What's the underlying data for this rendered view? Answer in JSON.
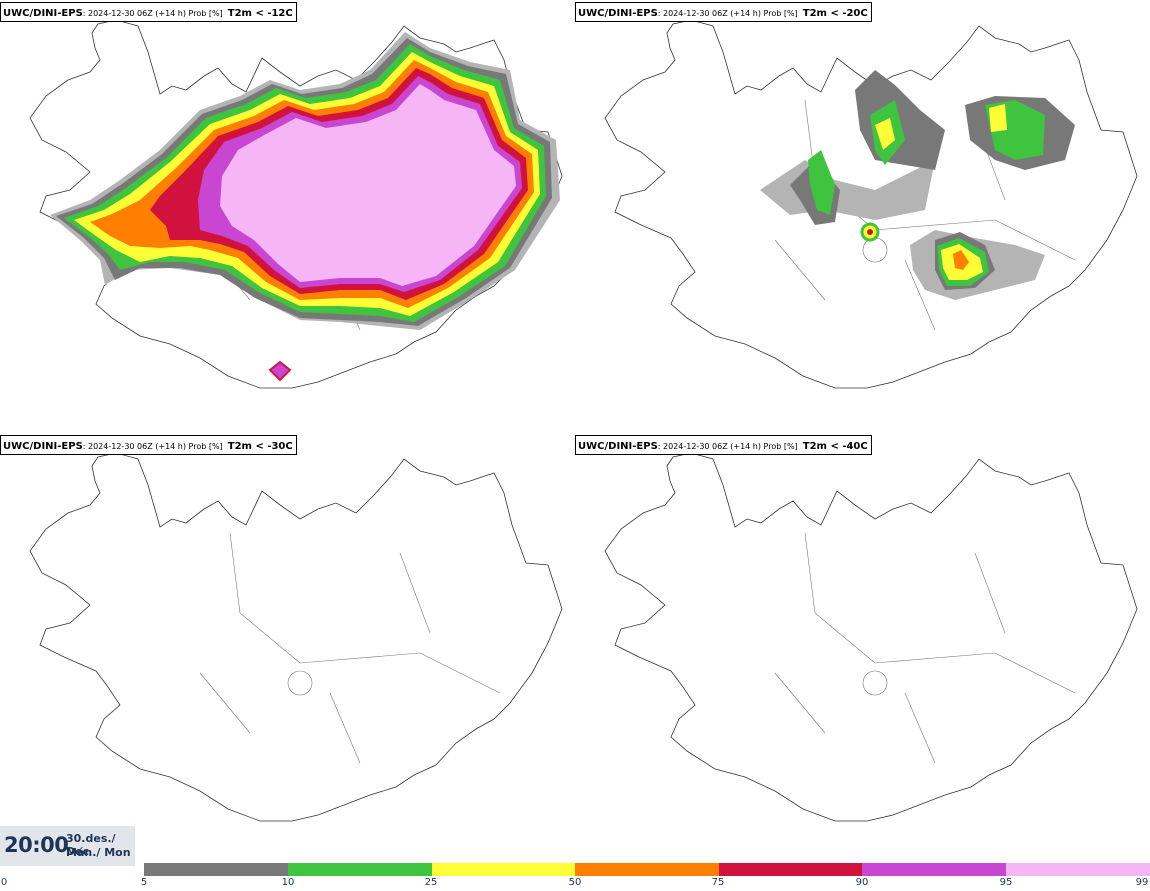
{
  "legend": {
    "colors": [
      "#b4b4b4",
      "#787878",
      "#3ec43e",
      "#ffff36",
      "#ff7f00",
      "#d2123e",
      "#c846d2",
      "#f6b6f6"
    ],
    "tick_labels": [
      "0",
      "5",
      "10",
      "25",
      "50",
      "75",
      "90",
      "95",
      "99"
    ]
  },
  "timestamp": {
    "time": "20:00",
    "date": "30.des./ Dec",
    "day": "Mán./ Mon"
  },
  "panels": [
    {
      "model": "UWC/DINI-EPS",
      "run": ": 2024-12-30 06Z (+14 h) Prob [%]",
      "threshold": "T2m < -12C"
    },
    {
      "model": "UWC/DINI-EPS",
      "run": ": 2024-12-30 06Z (+14 h) Prob [%]",
      "threshold": "T2m < -20C"
    },
    {
      "model": "UWC/DINI-EPS",
      "run": ": 2024-12-30 06Z (+14 h) Prob [%]",
      "threshold": "T2m < -30C"
    },
    {
      "model": "UWC/DINI-EPS",
      "run": ": 2024-12-30 06Z (+14 h) Prob [%]",
      "threshold": "T2m < -40C"
    }
  ]
}
